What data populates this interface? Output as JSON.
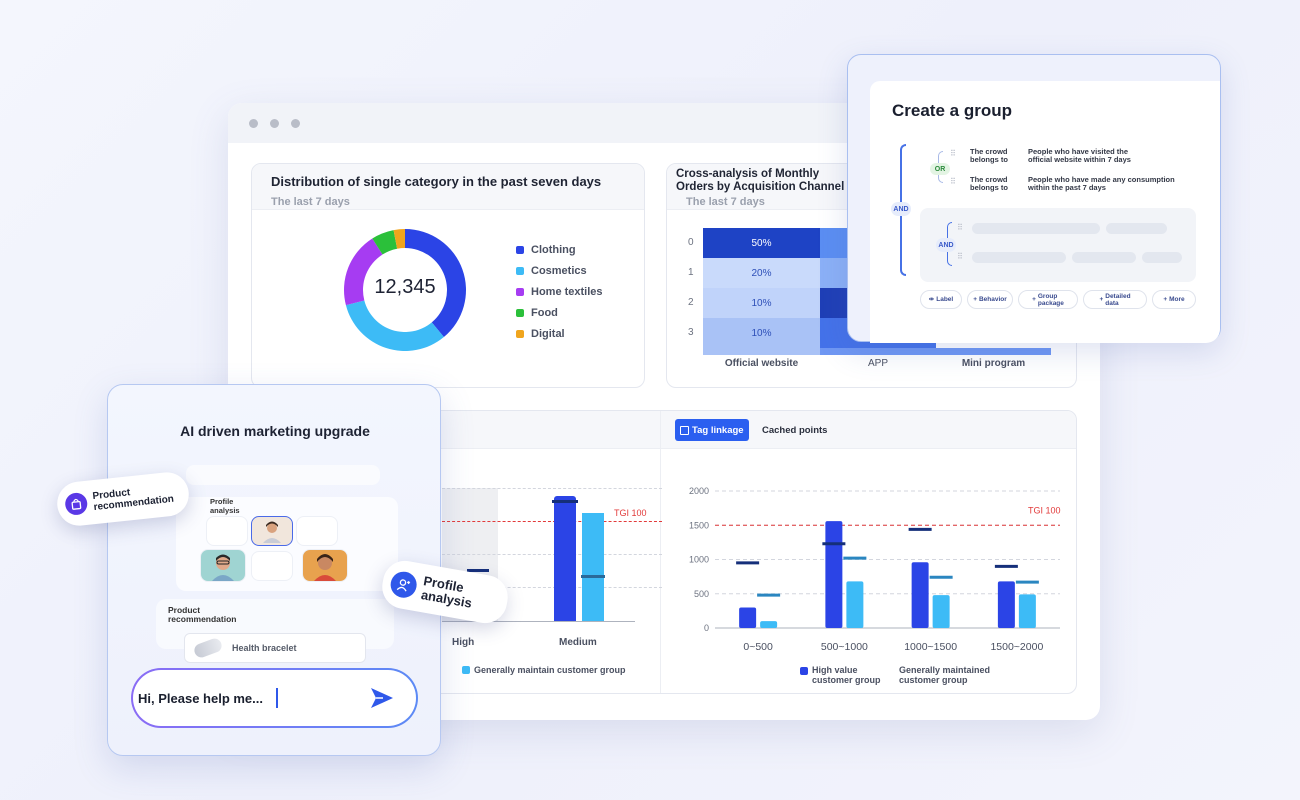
{
  "colors": {
    "brand_blue": "#2b44e6",
    "light_blue": "#3dbbf6",
    "tgi_red": "#e23a3a",
    "dark_navy": "#152f7a"
  },
  "donut_card": {
    "title": "Distribution of single category in the past seven days",
    "subtitle": "The last 7 days",
    "center_value": "12,345",
    "legend": [
      {
        "label": "Clothing",
        "color": "#2b44e6"
      },
      {
        "label": "Cosmetics",
        "color": "#3dbbf6"
      },
      {
        "label": "Home textiles",
        "color": "#a63cf2"
      },
      {
        "label": "Food",
        "color": "#2bc03a"
      },
      {
        "label": "Digital",
        "color": "#f0a51d"
      }
    ],
    "slices": [
      {
        "label": "Clothing",
        "fraction": 0.39
      },
      {
        "label": "Cosmetics",
        "fraction": 0.32
      },
      {
        "label": "Home textiles",
        "fraction": 0.2
      },
      {
        "label": "Food",
        "fraction": 0.06
      },
      {
        "label": "Digital",
        "fraction": 0.03
      }
    ]
  },
  "cross_card": {
    "title_line1": "Cross-analysis of Monthly",
    "title_line2": "Orders by Acquisition Channel",
    "subtitle": "The last 7 days",
    "row_labels": [
      "0",
      "1",
      "2",
      "3"
    ],
    "cells": [
      "50%",
      "20%",
      "10%",
      "10%"
    ],
    "columns": [
      "Official website",
      "APP",
      "Mini program"
    ]
  },
  "tgi_card": {
    "tgi_label": "TGI 100",
    "categories": [
      "High",
      "Medium"
    ],
    "legend_label": "Generally maintain customer group"
  },
  "tag_card": {
    "tab_active": "Tag linkage",
    "tab_inactive": "Cached points",
    "tgi_label": "TGI 100",
    "y_ticks": [
      "2000",
      "1500",
      "1000",
      "500",
      "0"
    ],
    "x_ticks": [
      "0~500",
      "500~1000",
      "1000~1500",
      "1500~2000"
    ],
    "legend_1_line1": "High value",
    "legend_1_line2": "customer group",
    "legend_2_line1": "Generally maintained",
    "legend_2_line2": "customer group"
  },
  "chart_data": {
    "type": "bar",
    "categories": [
      "0~500",
      "500~1000",
      "1000~1500",
      "1500~2000"
    ],
    "series": [
      {
        "name": "High value customer group",
        "values": [
          300,
          1560,
          960,
          680
        ],
        "markers": [
          950,
          1230,
          1440,
          900
        ]
      },
      {
        "name": "Generally maintained customer group",
        "values": [
          100,
          680,
          480,
          490
        ],
        "markers": [
          480,
          1020,
          740,
          670
        ]
      }
    ],
    "ylim": [
      0,
      2000
    ],
    "reference_line": 1500
  },
  "group_panel": {
    "title": "Create a group",
    "rule1_a_line1": "The crowd",
    "rule1_a_line2": "belongs to",
    "rule1_b_line1": "People who have visited the",
    "rule1_b_line2": "official website within 7 days",
    "rule2_a_line1": "The crowd",
    "rule2_a_line2": "belongs to",
    "rule2_b_line1": "People who have made any consumption",
    "rule2_b_line2": "within the past 7 days",
    "or_label": "OR",
    "and_outer": "AND",
    "and_inner": "AND",
    "chips": [
      {
        "label": "Label"
      },
      {
        "label": "Behavior"
      },
      {
        "label_line1": "Group",
        "label_line2": "package"
      },
      {
        "label_line1": "Detailed",
        "label_line2": "data"
      },
      {
        "label": "More"
      }
    ]
  },
  "ai_card": {
    "title": "AI driven marketing upgrade",
    "profile_small_line1": "Profile",
    "profile_small_line2": "analysis",
    "product_label_line1": "Product",
    "product_label_line2": "recommendation",
    "product_item": "Health bracelet",
    "input_text": "Hi, Please help me...",
    "tag_product_line1": "Product",
    "tag_product_line2": "recommendation",
    "tag_profile_line1": "Profile",
    "tag_profile_line2": "analysis"
  }
}
